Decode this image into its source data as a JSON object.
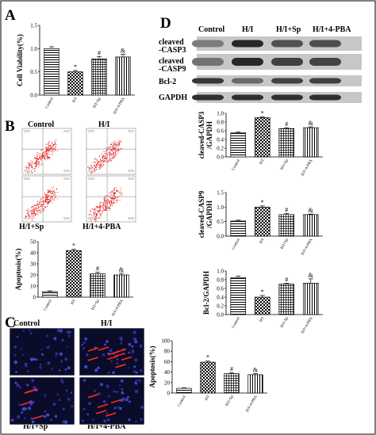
{
  "panels": {
    "A": "A",
    "B": "B",
    "C": "C",
    "D": "D"
  },
  "flow_labels": {
    "tl": "Control",
    "tr": "H/I",
    "bl": "H/I+Sp",
    "br": "H/I+4-PBA"
  },
  "micro_labels": {
    "tl": "Control",
    "tr": "H/I",
    "bl": "H/I+Sp",
    "br": "H/I+4-PBA"
  },
  "blot": {
    "columns": [
      "Control",
      "H/I",
      "H/I+Sp",
      "H/I+4-PBA"
    ],
    "rows": [
      "cleaved\n-CASP3",
      "cleaved\n-CASP9",
      "Bcl-2",
      "GAPDH"
    ]
  },
  "chart_data": [
    {
      "id": "A",
      "type": "bar",
      "categories": [
        "Control",
        "H/I",
        "H/I+Sp",
        "H/I+4-PBA"
      ],
      "values": [
        1.0,
        0.5,
        0.78,
        0.82
      ],
      "errors": [
        0.04,
        0.03,
        0.05,
        0.06
      ],
      "ylabel": "Cell Viability(%)",
      "ylim": [
        0.0,
        1.5
      ],
      "yticks": [
        "0.0",
        "0.5",
        "1.0",
        "1.5"
      ],
      "annotations": [
        "",
        "*",
        "#",
        "&"
      ]
    },
    {
      "id": "B",
      "type": "bar",
      "categories": [
        "Control",
        "H/I",
        "H/I+Sp",
        "H/I+4-PBA"
      ],
      "values": [
        5,
        42,
        21,
        20
      ],
      "errors": [
        0.6,
        1.2,
        1.5,
        1.5
      ],
      "ylabel": "Apoptosis(%)",
      "ylim": [
        0,
        50
      ],
      "yticks": [
        "0",
        "10",
        "20",
        "30",
        "40",
        "50"
      ],
      "annotations": [
        "",
        "*",
        "#",
        "&"
      ]
    },
    {
      "id": "C",
      "type": "bar",
      "categories": [
        "Control",
        "H/I",
        "H/I+Sp",
        "H/I+4-PBA"
      ],
      "values": [
        9,
        59,
        37,
        35
      ],
      "errors": [
        1,
        2,
        2,
        2
      ],
      "ylabel": "Apoptosis(%)",
      "ylim": [
        0,
        100
      ],
      "yticks": [
        "0",
        "20",
        "40",
        "60",
        "80",
        "100"
      ],
      "annotations": [
        "",
        "*",
        "#",
        "&"
      ]
    },
    {
      "id": "D1",
      "type": "bar",
      "categories": [
        "Control",
        "H/I",
        "H/I+Sp",
        "H/I+4-PBA"
      ],
      "values": [
        0.55,
        0.9,
        0.65,
        0.67
      ],
      "errors": [
        0.02,
        0.02,
        0.02,
        0.02
      ],
      "ylabel": "cleaved-CASP3\n/GAPDH",
      "ylim": [
        0.0,
        1.0
      ],
      "yticks": [
        "0.0",
        "0.2",
        "0.4",
        "0.6",
        "0.8",
        "1.0"
      ],
      "annotations": [
        "",
        "*",
        "#",
        "&"
      ]
    },
    {
      "id": "D2",
      "type": "bar",
      "categories": [
        "Control",
        "H/I",
        "H/I+Sp",
        "H/I+4-PBA"
      ],
      "values": [
        0.52,
        1.0,
        0.74,
        0.74
      ],
      "errors": [
        0.03,
        0.04,
        0.04,
        0.02
      ],
      "ylabel": "cleaved-CASP9\n/GAPDH",
      "ylim": [
        0.0,
        1.5
      ],
      "yticks": [
        "0.0",
        "0.5",
        "1.0",
        "1.5"
      ],
      "annotations": [
        "",
        "*",
        "#",
        "&"
      ]
    },
    {
      "id": "D3",
      "type": "bar",
      "categories": [
        "Control",
        "H/I",
        "H/I+Sp",
        "H/I+4-PBA"
      ],
      "values": [
        0.85,
        0.4,
        0.7,
        0.72
      ],
      "errors": [
        0.03,
        0.04,
        0.02,
        0.1
      ],
      "ylabel": "Bcl-2/GAPDH",
      "ylim": [
        0.0,
        1.0
      ],
      "yticks": [
        "0.0",
        "0.2",
        "0.4",
        "0.6",
        "0.8",
        "1.0"
      ],
      "annotations": [
        "",
        "*",
        "#",
        "&"
      ]
    }
  ]
}
